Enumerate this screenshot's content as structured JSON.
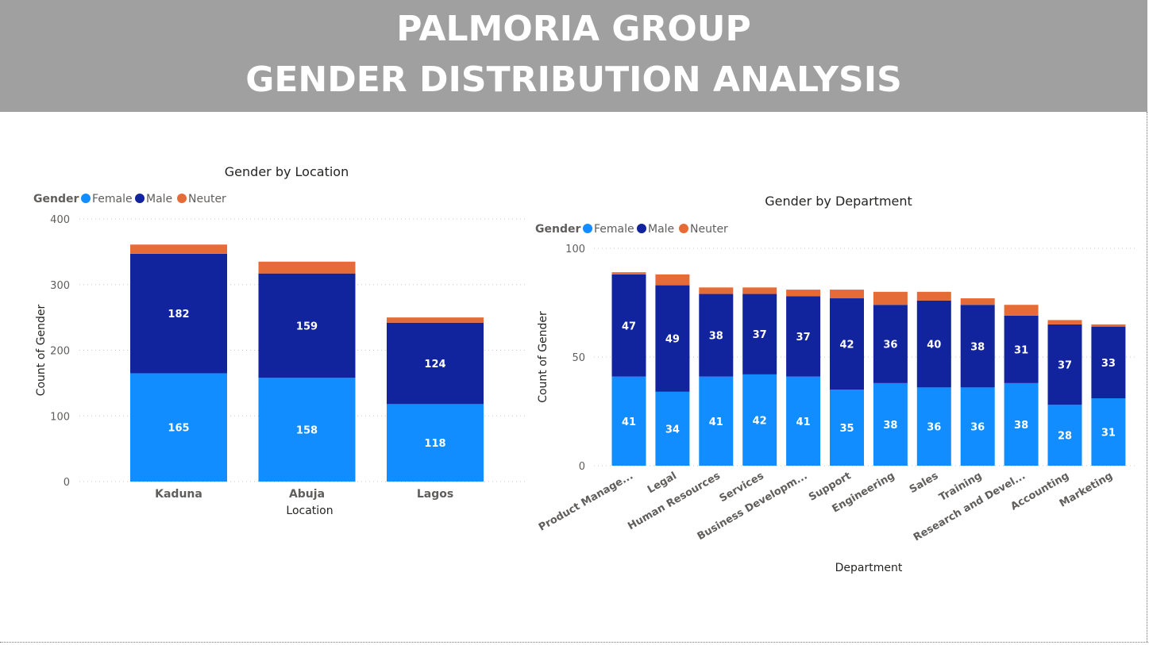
{
  "header": {
    "title_line1": "PALMORIA GROUP",
    "title_line2": "GENDER DISTRIBUTION ANALYSIS"
  },
  "colors": {
    "Female": "#118DFF",
    "Male": "#12239E",
    "Neuter": "#E66C37",
    "banner": "#a0a0a0"
  },
  "chart_data": [
    {
      "type": "bar",
      "stacked": true,
      "title": "Gender by Location",
      "legend_title": "Gender",
      "legend_position": "top-left",
      "xlabel": "Location",
      "ylabel": "Count of Gender",
      "ylim": [
        0,
        400
      ],
      "yticks": [
        "0",
        "100",
        "200",
        "300",
        "400"
      ],
      "grid": true,
      "categories": [
        "Kaduna",
        "Abuja",
        "Lagos"
      ],
      "series": [
        {
          "name": "Female",
          "values": [
            165,
            158,
            118
          ],
          "labels": [
            "165",
            "158",
            "118"
          ]
        },
        {
          "name": "Male",
          "values": [
            182,
            159,
            124
          ],
          "labels": [
            "182",
            "159",
            "124"
          ]
        },
        {
          "name": "Neuter",
          "values": [
            14,
            18,
            8
          ],
          "labels": [
            "",
            "",
            ""
          ]
        }
      ]
    },
    {
      "type": "bar",
      "stacked": true,
      "title": "Gender by Department",
      "legend_title": "Gender",
      "legend_position": "top-left",
      "xlabel": "Department",
      "ylabel": "Count of Gender",
      "ylim": [
        0,
        100
      ],
      "yticks": [
        "0",
        "50",
        "100"
      ],
      "grid": true,
      "categories": [
        "Product Manage...",
        "Legal",
        "Human Resources",
        "Services",
        "Business Developm...",
        "Support",
        "Engineering",
        "Sales",
        "Training",
        "Research and Devel...",
        "Accounting",
        "Marketing"
      ],
      "series": [
        {
          "name": "Female",
          "values": [
            41,
            34,
            41,
            42,
            41,
            35,
            38,
            36,
            36,
            38,
            28,
            31
          ],
          "labels": [
            "41",
            "34",
            "41",
            "42",
            "41",
            "35",
            "38",
            "36",
            "36",
            "38",
            "28",
            "31"
          ]
        },
        {
          "name": "Male",
          "values": [
            47,
            49,
            38,
            37,
            37,
            42,
            36,
            40,
            38,
            31,
            37,
            33
          ],
          "labels": [
            "47",
            "49",
            "38",
            "37",
            "37",
            "42",
            "36",
            "40",
            "38",
            "31",
            "37",
            "33"
          ]
        },
        {
          "name": "Neuter",
          "values": [
            1,
            5,
            3,
            3,
            3,
            4,
            6,
            4,
            3,
            5,
            2,
            1
          ],
          "labels": [
            "",
            "",
            "",
            "",
            "",
            "",
            "",
            "",
            "",
            "",
            "",
            ""
          ]
        }
      ]
    }
  ]
}
